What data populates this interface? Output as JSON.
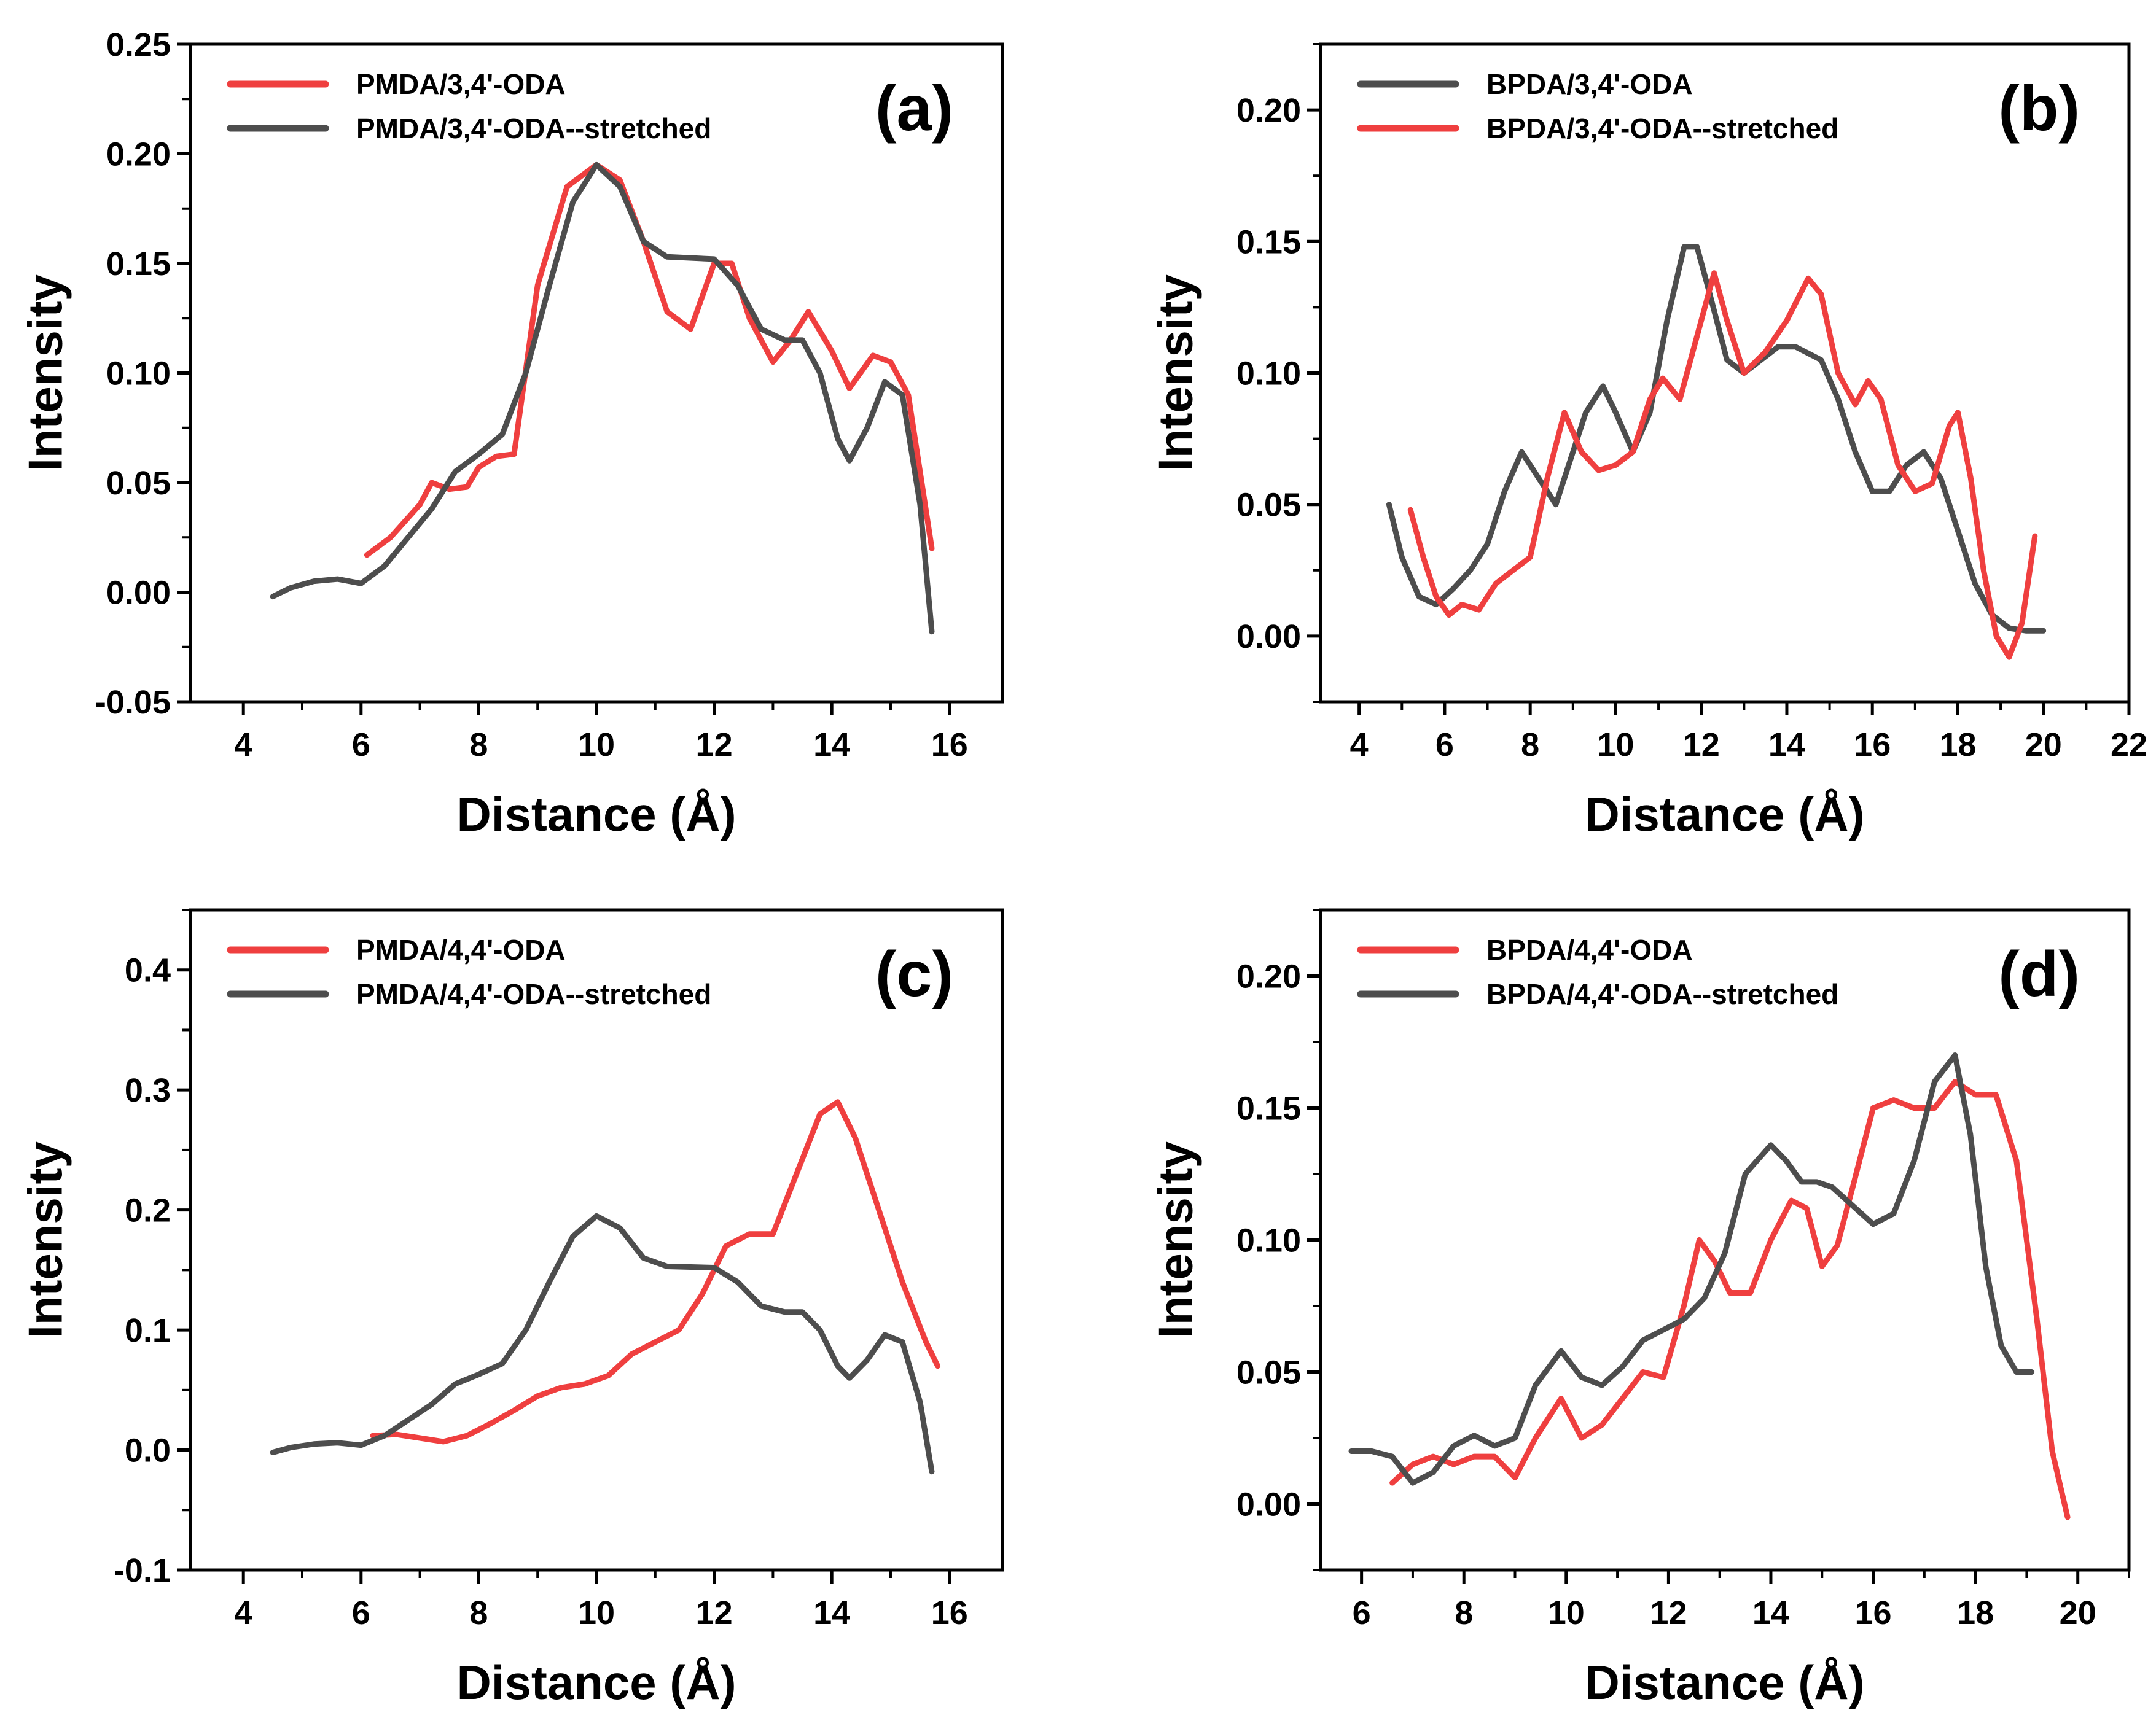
{
  "colors": {
    "red": "#ef3f3f",
    "gray": "#4d4d4d"
  },
  "chart_data": [
    {
      "id": "a",
      "type": "line",
      "panel_label": "(a)",
      "xlabel": "Distance (Å)",
      "ylabel": "Intensity",
      "xlim": [
        3.1,
        16.9
      ],
      "ylim": [
        -0.05,
        0.25
      ],
      "xticks": [
        4,
        6,
        8,
        10,
        12,
        14,
        16
      ],
      "xtick_labels": [
        "4",
        "6",
        "8",
        "10",
        "12",
        "14",
        "16"
      ],
      "yticks": [
        -0.05,
        0.0,
        0.05,
        0.1,
        0.15,
        0.2,
        0.25
      ],
      "ytick_labels": [
        "-0.05",
        "0.00",
        "0.05",
        "0.10",
        "0.15",
        "0.20",
        "0.25"
      ],
      "legend_position": "top-left",
      "series": [
        {
          "name": "PMDA/3,4'-ODA",
          "color": "#ef3f3f",
          "x": [
            6.1,
            6.5,
            7.0,
            7.2,
            7.5,
            7.8,
            8.0,
            8.3,
            8.6,
            9.0,
            9.5,
            10.0,
            10.4,
            10.8,
            11.2,
            11.6,
            12.0,
            12.3,
            12.6,
            13.0,
            13.3,
            13.6,
            14.0,
            14.3,
            14.7,
            15.0,
            15.3,
            15.7
          ],
          "y": [
            0.017,
            0.025,
            0.04,
            0.05,
            0.047,
            0.048,
            0.057,
            0.062,
            0.063,
            0.14,
            0.185,
            0.195,
            0.188,
            0.16,
            0.128,
            0.12,
            0.15,
            0.15,
            0.125,
            0.105,
            0.115,
            0.128,
            0.11,
            0.093,
            0.108,
            0.105,
            0.09,
            0.02
          ]
        },
        {
          "name": "PMDA/3,4'-ODA--stretched",
          "color": "#4d4d4d",
          "x": [
            4.5,
            4.8,
            5.2,
            5.6,
            6.0,
            6.4,
            6.8,
            7.2,
            7.6,
            8.0,
            8.4,
            8.8,
            9.2,
            9.6,
            10.0,
            10.4,
            10.8,
            11.2,
            12.0,
            12.4,
            12.8,
            13.2,
            13.5,
            13.8,
            14.1,
            14.3,
            14.6,
            14.9,
            15.2,
            15.5,
            15.7
          ],
          "y": [
            -0.002,
            0.002,
            0.005,
            0.006,
            0.004,
            0.012,
            0.025,
            0.038,
            0.055,
            0.063,
            0.072,
            0.1,
            0.14,
            0.178,
            0.195,
            0.185,
            0.16,
            0.153,
            0.152,
            0.14,
            0.12,
            0.115,
            0.115,
            0.1,
            0.07,
            0.06,
            0.075,
            0.096,
            0.09,
            0.04,
            -0.018
          ]
        }
      ]
    },
    {
      "id": "b",
      "type": "line",
      "panel_label": "(b)",
      "xlabel": "Distance (Å)",
      "ylabel": "Intensity",
      "xlim": [
        3.1,
        22
      ],
      "ylim": [
        -0.025,
        0.225
      ],
      "xticks": [
        4,
        6,
        8,
        10,
        12,
        14,
        16,
        18,
        20,
        22
      ],
      "xtick_labels": [
        "4",
        "6",
        "8",
        "10",
        "12",
        "14",
        "16",
        "18",
        "20",
        "22"
      ],
      "yticks": [
        0.0,
        0.05,
        0.1,
        0.15,
        0.2
      ],
      "ytick_labels": [
        "0.00",
        "0.05",
        "0.10",
        "0.15",
        "0.20"
      ],
      "legend_position": "top-left",
      "series": [
        {
          "name": "BPDA/3,4'-ODA",
          "color": "#4d4d4d",
          "x": [
            4.7,
            5.0,
            5.4,
            5.8,
            6.2,
            6.6,
            7.0,
            7.4,
            7.8,
            8.2,
            8.6,
            9.0,
            9.3,
            9.7,
            10.0,
            10.4,
            10.8,
            11.2,
            11.6,
            11.9,
            12.2,
            12.6,
            13.0,
            13.4,
            13.8,
            14.2,
            14.8,
            15.2,
            15.6,
            16.0,
            16.4,
            16.8,
            17.2,
            17.6,
            18.0,
            18.4,
            18.8,
            19.2,
            19.6,
            20.0
          ],
          "y": [
            0.05,
            0.03,
            0.015,
            0.012,
            0.018,
            0.025,
            0.035,
            0.055,
            0.07,
            0.06,
            0.05,
            0.07,
            0.085,
            0.095,
            0.085,
            0.07,
            0.085,
            0.12,
            0.148,
            0.148,
            0.13,
            0.105,
            0.1,
            0.105,
            0.11,
            0.11,
            0.105,
            0.09,
            0.07,
            0.055,
            0.055,
            0.065,
            0.07,
            0.06,
            0.04,
            0.02,
            0.008,
            0.003,
            0.002,
            0.002
          ]
        },
        {
          "name": "BPDA/3,4'-ODA--stretched",
          "color": "#ef3f3f",
          "x": [
            5.2,
            5.5,
            5.8,
            6.1,
            6.4,
            6.8,
            7.2,
            7.6,
            8.0,
            8.4,
            8.8,
            9.2,
            9.6,
            10.0,
            10.4,
            10.8,
            11.1,
            11.5,
            12.0,
            12.3,
            12.6,
            13.0,
            13.5,
            14.0,
            14.5,
            14.8,
            15.2,
            15.6,
            15.9,
            16.2,
            16.6,
            17.0,
            17.4,
            17.8,
            18.0,
            18.3,
            18.6,
            18.9,
            19.2,
            19.5,
            19.8
          ],
          "y": [
            0.048,
            0.03,
            0.015,
            0.008,
            0.012,
            0.01,
            0.02,
            0.025,
            0.03,
            0.06,
            0.085,
            0.07,
            0.063,
            0.065,
            0.07,
            0.09,
            0.098,
            0.09,
            0.12,
            0.138,
            0.12,
            0.1,
            0.108,
            0.12,
            0.136,
            0.13,
            0.1,
            0.088,
            0.097,
            0.09,
            0.065,
            0.055,
            0.058,
            0.08,
            0.085,
            0.06,
            0.025,
            0.0,
            -0.008,
            0.005,
            0.038
          ]
        }
      ]
    },
    {
      "id": "c",
      "type": "line",
      "panel_label": "(c)",
      "xlabel": "Distance (Å)",
      "ylabel": "Intensity",
      "xlim": [
        3.1,
        16.9
      ],
      "ylim": [
        -0.1,
        0.45
      ],
      "xticks": [
        4,
        6,
        8,
        10,
        12,
        14,
        16
      ],
      "xtick_labels": [
        "4",
        "6",
        "8",
        "10",
        "12",
        "14",
        "16"
      ],
      "yticks": [
        -0.1,
        0.0,
        0.1,
        0.2,
        0.3,
        0.4
      ],
      "ytick_labels": [
        "-0.1",
        "0.0",
        "0.1",
        "0.2",
        "0.3",
        "0.4"
      ],
      "legend_position": "top-left",
      "series": [
        {
          "name": "PMDA/4,4'-ODA",
          "color": "#ef3f3f",
          "x": [
            6.2,
            6.6,
            7.0,
            7.4,
            7.8,
            8.2,
            8.6,
            9.0,
            9.4,
            9.8,
            10.2,
            10.6,
            11.0,
            11.4,
            11.8,
            12.2,
            12.6,
            13.0,
            13.4,
            13.8,
            14.1,
            14.4,
            14.8,
            15.2,
            15.6,
            15.8
          ],
          "y": [
            0.012,
            0.013,
            0.01,
            0.007,
            0.012,
            0.022,
            0.033,
            0.045,
            0.052,
            0.055,
            0.062,
            0.08,
            0.09,
            0.1,
            0.13,
            0.17,
            0.18,
            0.18,
            0.23,
            0.28,
            0.29,
            0.26,
            0.2,
            0.14,
            0.09,
            0.07
          ]
        },
        {
          "name": "PMDA/4,4'-ODA--stretched",
          "color": "#4d4d4d",
          "x": [
            4.5,
            4.8,
            5.2,
            5.6,
            6.0,
            6.4,
            6.8,
            7.2,
            7.6,
            8.0,
            8.4,
            8.8,
            9.2,
            9.6,
            10.0,
            10.4,
            10.8,
            11.2,
            12.0,
            12.4,
            12.8,
            13.2,
            13.5,
            13.8,
            14.1,
            14.3,
            14.6,
            14.9,
            15.2,
            15.5,
            15.7
          ],
          "y": [
            -0.002,
            0.002,
            0.005,
            0.006,
            0.004,
            0.012,
            0.025,
            0.038,
            0.055,
            0.063,
            0.072,
            0.1,
            0.14,
            0.178,
            0.195,
            0.185,
            0.16,
            0.153,
            0.152,
            0.14,
            0.12,
            0.115,
            0.115,
            0.1,
            0.07,
            0.06,
            0.075,
            0.096,
            0.09,
            0.04,
            -0.018
          ]
        }
      ]
    },
    {
      "id": "d",
      "type": "line",
      "panel_label": "(d)",
      "xlabel": "Distance (Å)",
      "ylabel": "Intensity",
      "xlim": [
        5.2,
        21
      ],
      "ylim": [
        -0.025,
        0.225
      ],
      "xticks": [
        6,
        8,
        10,
        12,
        14,
        16,
        18,
        20
      ],
      "xtick_labels": [
        "6",
        "8",
        "10",
        "12",
        "14",
        "16",
        "18",
        "20"
      ],
      "yticks": [
        0.0,
        0.05,
        0.1,
        0.15,
        0.2
      ],
      "ytick_labels": [
        "0.00",
        "0.05",
        "0.10",
        "0.15",
        "0.20"
      ],
      "legend_position": "top-left",
      "series": [
        {
          "name": "BPDA/4,4'-ODA",
          "color": "#ef3f3f",
          "x": [
            6.6,
            7.0,
            7.4,
            7.8,
            8.2,
            8.6,
            9.0,
            9.4,
            9.9,
            10.3,
            10.7,
            11.1,
            11.5,
            11.9,
            12.3,
            12.6,
            12.9,
            13.2,
            13.6,
            14.0,
            14.4,
            14.7,
            15.0,
            15.3,
            15.6,
            16.0,
            16.4,
            16.8,
            17.2,
            17.6,
            18.0,
            18.4,
            18.8,
            19.2,
            19.5,
            19.8
          ],
          "y": [
            0.008,
            0.015,
            0.018,
            0.015,
            0.018,
            0.018,
            0.01,
            0.025,
            0.04,
            0.025,
            0.03,
            0.04,
            0.05,
            0.048,
            0.075,
            0.1,
            0.092,
            0.08,
            0.08,
            0.1,
            0.115,
            0.112,
            0.09,
            0.098,
            0.12,
            0.15,
            0.153,
            0.15,
            0.15,
            0.16,
            0.155,
            0.155,
            0.13,
            0.07,
            0.02,
            -0.005
          ]
        },
        {
          "name": "BPDA/4,4'-ODA--stretched",
          "color": "#4d4d4d",
          "x": [
            5.8,
            6.2,
            6.6,
            7.0,
            7.4,
            7.8,
            8.2,
            8.6,
            9.0,
            9.4,
            9.9,
            10.3,
            10.7,
            11.1,
            11.5,
            11.9,
            12.3,
            12.7,
            13.1,
            13.5,
            14.0,
            14.3,
            14.6,
            14.9,
            15.2,
            15.6,
            16.0,
            16.4,
            16.8,
            17.2,
            17.6,
            17.9,
            18.2,
            18.5,
            18.8,
            19.1
          ],
          "y": [
            0.02,
            0.02,
            0.018,
            0.008,
            0.012,
            0.022,
            0.026,
            0.022,
            0.025,
            0.045,
            0.058,
            0.048,
            0.045,
            0.052,
            0.062,
            0.066,
            0.07,
            0.078,
            0.095,
            0.125,
            0.136,
            0.13,
            0.122,
            0.122,
            0.12,
            0.113,
            0.106,
            0.11,
            0.13,
            0.16,
            0.17,
            0.14,
            0.09,
            0.06,
            0.05,
            0.05
          ]
        }
      ]
    }
  ]
}
